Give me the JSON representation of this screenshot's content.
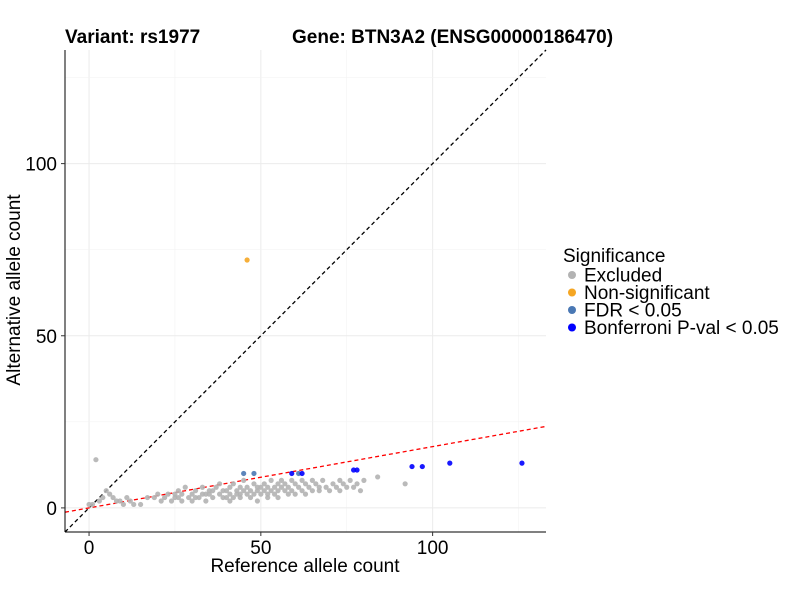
{
  "header": {
    "variant_title": "Variant: rs1977",
    "gene_title": "Gene: BTN3A2 (ENSG00000186470)"
  },
  "chart_data": {
    "type": "scatter",
    "xlabel": "Reference allele count",
    "ylabel": "Alternative allele count",
    "xlim": [
      -7,
      133
    ],
    "ylim": [
      -7,
      133
    ],
    "x_ticks": [
      0,
      50,
      100
    ],
    "y_ticks": [
      0,
      50,
      100
    ],
    "grid": true,
    "reference_lines": [
      {
        "name": "identity",
        "slope": 1,
        "intercept": 0,
        "color": "#000000",
        "style": "dashed"
      },
      {
        "name": "fit",
        "slope": 0.178,
        "intercept": 0.0,
        "color": "#ff0000",
        "style": "dashed"
      }
    ],
    "legend": {
      "title": "Significance",
      "position": "right",
      "entries": [
        {
          "label": "Excluded",
          "color": "#b3b3b3"
        },
        {
          "label": "Non-significant",
          "color": "#f5a623"
        },
        {
          "label": "FDR < 0.05",
          "color": "#4a78b4"
        },
        {
          "label": "Bonferroni P-val < 0.05",
          "color": "#0000ff"
        }
      ]
    },
    "series": [
      {
        "name": "Excluded",
        "color": "#b3b3b3",
        "points": [
          [
            2,
            14
          ],
          [
            0,
            1
          ],
          [
            1,
            1
          ],
          [
            3,
            2
          ],
          [
            4,
            3
          ],
          [
            5,
            5
          ],
          [
            6,
            4
          ],
          [
            7,
            3
          ],
          [
            8,
            2
          ],
          [
            9,
            2
          ],
          [
            10,
            1
          ],
          [
            11,
            3
          ],
          [
            12,
            2
          ],
          [
            13,
            1
          ],
          [
            15,
            1
          ],
          [
            17,
            3
          ],
          [
            19,
            3
          ],
          [
            20,
            4
          ],
          [
            21,
            2
          ],
          [
            22,
            3
          ],
          [
            23,
            4
          ],
          [
            24,
            2
          ],
          [
            25,
            3
          ],
          [
            26,
            5
          ],
          [
            27,
            4
          ],
          [
            27,
            2
          ],
          [
            28,
            6
          ],
          [
            29,
            3
          ],
          [
            30,
            4
          ],
          [
            30,
            2
          ],
          [
            31,
            5
          ],
          [
            32,
            3
          ],
          [
            33,
            4
          ],
          [
            33,
            6
          ],
          [
            34,
            2
          ],
          [
            35,
            4
          ],
          [
            35,
            5
          ],
          [
            36,
            3
          ],
          [
            37,
            6
          ],
          [
            38,
            4
          ],
          [
            38,
            7
          ],
          [
            39,
            5
          ],
          [
            40,
            3
          ],
          [
            40,
            5
          ],
          [
            41,
            4
          ],
          [
            41,
            6
          ],
          [
            42,
            3
          ],
          [
            42,
            7
          ],
          [
            43,
            5
          ],
          [
            43,
            4
          ],
          [
            44,
            6
          ],
          [
            44,
            3
          ],
          [
            45,
            5
          ],
          [
            45,
            8
          ],
          [
            46,
            4
          ],
          [
            46,
            6
          ],
          [
            47,
            3
          ],
          [
            47,
            5
          ],
          [
            48,
            7
          ],
          [
            48,
            4
          ],
          [
            49,
            5
          ],
          [
            49,
            2
          ],
          [
            50,
            6
          ],
          [
            50,
            4
          ],
          [
            51,
            5
          ],
          [
            51,
            7
          ],
          [
            52,
            3
          ],
          [
            52,
            6
          ],
          [
            53,
            8
          ],
          [
            53,
            5
          ],
          [
            54,
            4
          ],
          [
            54,
            6
          ],
          [
            55,
            7
          ],
          [
            55,
            5
          ],
          [
            56,
            6
          ],
          [
            56,
            8
          ],
          [
            57,
            5
          ],
          [
            57,
            7
          ],
          [
            58,
            4
          ],
          [
            58,
            6
          ],
          [
            59,
            8
          ],
          [
            59,
            5
          ],
          [
            60,
            7
          ],
          [
            60,
            4
          ],
          [
            61,
            6
          ],
          [
            62,
            5
          ],
          [
            62,
            8
          ],
          [
            63,
            7
          ],
          [
            63,
            4
          ],
          [
            64,
            6
          ],
          [
            65,
            5
          ],
          [
            65,
            8
          ],
          [
            66,
            7
          ],
          [
            67,
            5
          ],
          [
            67,
            6
          ],
          [
            68,
            8
          ],
          [
            69,
            6
          ],
          [
            70,
            5
          ],
          [
            71,
            7
          ],
          [
            72,
            6
          ],
          [
            73,
            8
          ],
          [
            73,
            5
          ],
          [
            74,
            7
          ],
          [
            75,
            6
          ],
          [
            76,
            8
          ],
          [
            77,
            6
          ],
          [
            78,
            7
          ],
          [
            79,
            5
          ],
          [
            80,
            8
          ],
          [
            84,
            9
          ],
          [
            92,
            7
          ],
          [
            25,
            4
          ],
          [
            26,
            3
          ],
          [
            31,
            3
          ],
          [
            34,
            4
          ],
          [
            36,
            5
          ],
          [
            39,
            3
          ],
          [
            41,
            2
          ],
          [
            44,
            4
          ],
          [
            49,
            6
          ],
          [
            52,
            4
          ],
          [
            55,
            3
          ]
        ]
      },
      {
        "name": "Non-significant",
        "color": "#f5a623",
        "points": [
          [
            46,
            72
          ]
        ]
      },
      {
        "name": "FDR < 0.05",
        "color": "#4a78b4",
        "points": [
          [
            45,
            10
          ],
          [
            48,
            10
          ],
          [
            61,
            10
          ]
        ]
      },
      {
        "name": "Bonferroni P-val < 0.05",
        "color": "#0000ff",
        "points": [
          [
            59,
            10
          ],
          [
            62,
            10
          ],
          [
            77,
            11
          ],
          [
            78,
            11
          ],
          [
            94,
            12
          ],
          [
            97,
            12
          ],
          [
            105,
            13
          ],
          [
            126,
            13
          ]
        ]
      }
    ]
  }
}
